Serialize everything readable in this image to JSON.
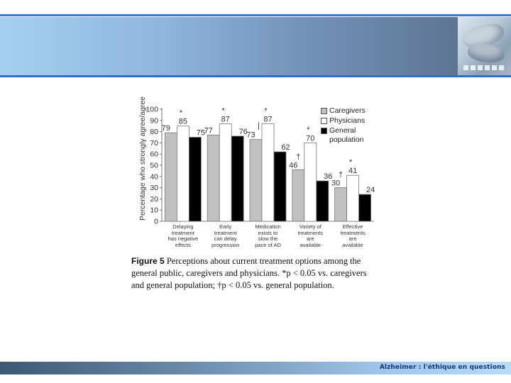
{
  "footer": {
    "text": "Alzheimer : l'éthique en questions"
  },
  "photo": {
    "icon": "hands-photo-icon"
  },
  "caption": {
    "figure_label": "Figure 5",
    "text": "Perceptions about current treatment options among the general public, caregivers and physicians. *p < 0.05 vs. caregivers and general population; †p < 0.05 vs. general population."
  },
  "chart_data": {
    "type": "bar",
    "ylabel": "Percentage who strongly agree/agree",
    "ylim": [
      0,
      100
    ],
    "yticks": [
      0,
      10,
      20,
      30,
      40,
      50,
      60,
      70,
      80,
      90,
      100
    ],
    "legend_placement": "top-right",
    "categories": [
      "Delaying treatment has negative effects",
      "Early treatment can delay progression",
      "Medication exists to slow the pace of AD",
      "Variety of treatments are available",
      "Effective treatments are available"
    ],
    "category_lines": [
      [
        "Delaying",
        "treatment",
        "has negative",
        "effects"
      ],
      [
        "Early",
        "treatment",
        "can delay",
        "progression"
      ],
      [
        "Medication",
        "exists to",
        "slow the",
        "pace of AD"
      ],
      [
        "Variety of",
        "treatments",
        "are",
        "available"
      ],
      [
        "Effective",
        "treatments",
        "are",
        "available"
      ]
    ],
    "series": [
      {
        "name": "Caregivers",
        "color": "#c0c0c0",
        "values": [
          79,
          77,
          73,
          46,
          30
        ],
        "markers": [
          "",
          "",
          "",
          "†",
          "†"
        ]
      },
      {
        "name": "Physicians",
        "color": "#ffffff",
        "values": [
          85,
          87,
          87,
          70,
          41
        ],
        "markers": [
          "*",
          "*",
          "*",
          "*",
          "*"
        ]
      },
      {
        "name": "General population",
        "color": "#000000",
        "values": [
          75,
          76,
          62,
          36,
          24
        ],
        "markers": [
          "",
          "",
          "",
          "",
          ""
        ]
      }
    ],
    "legend_lines": [
      [
        "Caregivers"
      ],
      [
        "Physicians"
      ],
      [
        "General",
        "population"
      ]
    ],
    "extra_annotations": [
      {
        "category_index": 2,
        "series_index": 0,
        "text": "|"
      }
    ]
  }
}
